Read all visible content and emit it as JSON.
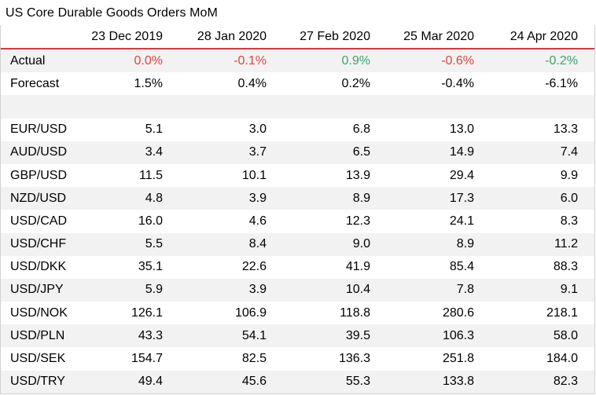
{
  "title": "US Core Durable Goods Orders MoM",
  "columns": [
    "23 Dec 2019",
    "28 Jan 2020",
    "27 Feb 2020",
    "25 Mar 2020",
    "24 Apr 2020"
  ],
  "colors": {
    "negative": "#e0443f",
    "positive": "#3aa56a",
    "header_rule": "#d8383d",
    "stripe": "#f2f2f2"
  },
  "actual": {
    "label": "Actual",
    "values": [
      "0.0%",
      "-0.1%",
      "0.9%",
      "-0.6%",
      "-0.2%"
    ],
    "tones": [
      "neg",
      "neg",
      "pos",
      "neg",
      "pos"
    ]
  },
  "forecast": {
    "label": "Forecast",
    "values": [
      "1.5%",
      "0.4%",
      "0.2%",
      "-0.4%",
      "-6.1%"
    ]
  },
  "pairs": [
    {
      "label": "EUR/USD",
      "values": [
        "5.1",
        "3.0",
        "6.8",
        "13.0",
        "13.3"
      ]
    },
    {
      "label": "AUD/USD",
      "values": [
        "3.4",
        "3.7",
        "6.5",
        "14.9",
        "7.4"
      ]
    },
    {
      "label": "GBP/USD",
      "values": [
        "11.5",
        "10.1",
        "13.9",
        "29.4",
        "9.9"
      ]
    },
    {
      "label": "NZD/USD",
      "values": [
        "4.8",
        "3.9",
        "8.9",
        "17.3",
        "6.0"
      ]
    },
    {
      "label": "USD/CAD",
      "values": [
        "16.0",
        "4.6",
        "12.3",
        "24.1",
        "8.3"
      ]
    },
    {
      "label": "USD/CHF",
      "values": [
        "5.5",
        "8.4",
        "9.0",
        "8.9",
        "11.2"
      ]
    },
    {
      "label": "USD/DKK",
      "values": [
        "35.1",
        "22.6",
        "41.9",
        "85.4",
        "88.3"
      ]
    },
    {
      "label": "USD/JPY",
      "values": [
        "5.9",
        "3.9",
        "10.4",
        "7.8",
        "9.1"
      ]
    },
    {
      "label": "USD/NOK",
      "values": [
        "126.1",
        "106.9",
        "118.8",
        "280.6",
        "218.1"
      ]
    },
    {
      "label": "USD/PLN",
      "values": [
        "43.3",
        "54.1",
        "39.5",
        "106.3",
        "58.0"
      ]
    },
    {
      "label": "USD/SEK",
      "values": [
        "154.7",
        "82.5",
        "136.3",
        "251.8",
        "184.0"
      ]
    },
    {
      "label": "USD/TRY",
      "values": [
        "49.4",
        "45.6",
        "55.3",
        "133.8",
        "82.3"
      ]
    }
  ]
}
